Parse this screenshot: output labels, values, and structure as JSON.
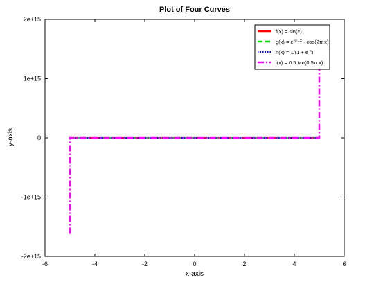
{
  "chart_data": {
    "type": "line",
    "title": "Plot of Four Curves",
    "xlabel": "x-axis",
    "ylabel": "y-axis",
    "xlim": [
      -6,
      6
    ],
    "ylim": [
      -2000000000000000.0,
      2000000000000000.0
    ],
    "xticks": [
      -6,
      -4,
      -2,
      0,
      2,
      4,
      6
    ],
    "xtick_labels": [
      "-6",
      "-4",
      "-2",
      "0",
      "2",
      "4",
      "6"
    ],
    "yticks": [
      -2000000000000000.0,
      -1000000000000000.0,
      0,
      1000000000000000.0,
      2000000000000000.0
    ],
    "ytick_labels": [
      "-2e+15",
      "-1e+15",
      "0",
      "1e+15",
      "2e+15"
    ],
    "grid": false,
    "legend_position": "top-right",
    "series": [
      {
        "name": "f(x) = sin(x)",
        "legend": {
          "pre": "f(x) = sin(x)",
          "sup": "",
          "post": ""
        },
        "color": "#ff0000",
        "style": "solid",
        "x": [
          -5,
          5
        ],
        "y": [
          0,
          0
        ]
      },
      {
        "name": "g(x) = e^{-0.1x} · cos(2π x)",
        "legend": {
          "pre": "g(x) = e",
          "sup": "-0.1x",
          "post": " · cos(2π x)"
        },
        "color": "#00dd00",
        "style": "dashed",
        "x": [
          -5,
          5
        ],
        "y": [
          0,
          0
        ]
      },
      {
        "name": "h(x) = 1/(1 + e^{-x})",
        "legend": {
          "pre": "h(x) = 1/(1 + e",
          "sup": "-x",
          "post": ")"
        },
        "color": "#0000ff",
        "style": "dotted",
        "x": [
          -5,
          5
        ],
        "y": [
          0,
          0
        ]
      },
      {
        "name": "i(x) = 0.5 tan(0.5π x)",
        "legend": {
          "pre": "i(x) = 0.5 tan(0.5π x)",
          "sup": "",
          "post": ""
        },
        "color": "#ff00ff",
        "style": "dashdot",
        "x": [
          -5,
          -5,
          5,
          5
        ],
        "y": [
          -1620000000000000.0,
          0,
          0,
          1620000000000000.0
        ]
      }
    ]
  }
}
